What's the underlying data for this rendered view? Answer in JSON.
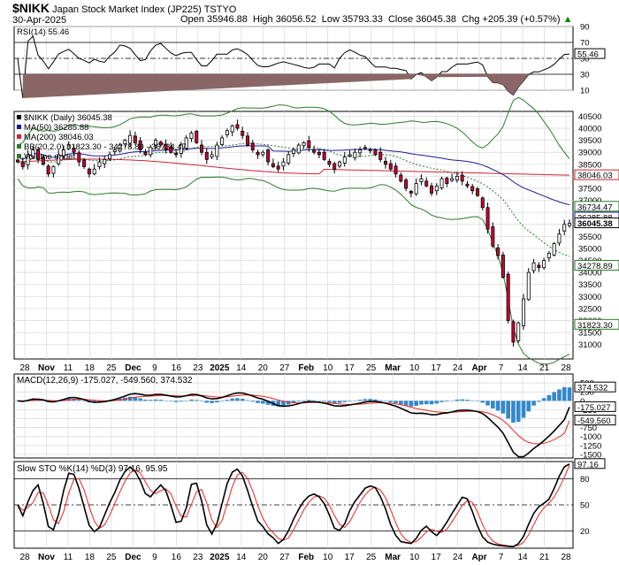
{
  "header": {
    "symbol": "$NIKK",
    "name": "Japan Stock Market Index (JP225)",
    "exchange": "TSTYO",
    "date": "30-Apr-2025",
    "open_label": "Open",
    "open": "35946.88",
    "high_label": "High",
    "high": "36056.52",
    "low_label": "Low",
    "low": "35793.33",
    "close_label": "Close",
    "close": "36045.38",
    "chg_label": "Chg",
    "chg": "+205.39 (+0.57%)",
    "chg_arrow": "▲"
  },
  "colors": {
    "up_candle": "#ffffff",
    "down_candle": "#cc0033",
    "ma50": "#1a1a99",
    "ma200": "#cc2233",
    "bollinger": "#2a7a2a",
    "bb_mid": "#2a7a2a",
    "macd_hist": "#3388cc",
    "signal_red": "#ee2222",
    "rsi_fill": "#8a6666",
    "grid": "#d8d8d8"
  },
  "chart_data": [
    {
      "type": "line",
      "panel": "rsi",
      "title": "RSI(14) 55.46",
      "ylim": [
        10,
        90
      ],
      "ticks": [
        90,
        70,
        50,
        30,
        10
      ],
      "reference_lines": [
        70,
        30
      ],
      "last_value_tag": "55.46"
    },
    {
      "type": "candlestick",
      "panel": "price",
      "legend": [
        {
          "label": "$NIKK (Daily) 36045.38",
          "color": "#000000"
        },
        {
          "label": "MA(50) 36285.88",
          "color": "#1a1a99"
        },
        {
          "label": "MA(200) 38046.03",
          "color": "#cc2233"
        },
        {
          "label": "BB(20,2.0) 31823.30 - 34278.89 - 36734.47",
          "color": "#2a7a2a"
        },
        {
          "label": "Volume undef",
          "color": "#2a7a2a"
        }
      ],
      "ylim": [
        30400,
        40700
      ],
      "ticks": [
        40500,
        40000,
        39500,
        39000,
        38500,
        38000,
        37500,
        37000,
        36500,
        36000,
        35500,
        35000,
        34500,
        34000,
        33500,
        33000,
        32500,
        32000,
        31500,
        31000
      ],
      "tags": [
        {
          "label": "38046.03",
          "value": 38046.03
        },
        {
          "label": "36734.47",
          "value": 36734.47
        },
        {
          "label": "36285.88",
          "value": 36285.88
        },
        {
          "label": "36045.38",
          "value": 36045.38,
          "bold": true
        },
        {
          "label": "34278.89",
          "value": 34278.89
        },
        {
          "label": "31823.30",
          "value": 31823.3
        }
      ],
      "x_labels": [
        "28",
        "Nov",
        "11",
        "18",
        "25",
        "Dec",
        "9",
        "16",
        "23",
        "2025",
        "14",
        "20",
        "27",
        "Feb",
        "10",
        "17",
        "25",
        "Mar",
        "10",
        "17",
        "24",
        "Apr",
        "7",
        "14",
        "21",
        "28"
      ],
      "bold_x_labels": [
        "Nov",
        "Dec",
        "2025",
        "Feb",
        "Mar",
        "Apr"
      ],
      "closes": [
        38600,
        38400,
        38900,
        39100,
        38700,
        38500,
        38100,
        38400,
        38900,
        39100,
        39300,
        39000,
        38600,
        38400,
        38100,
        38300,
        38600,
        38700,
        38900,
        39100,
        39300,
        39500,
        39700,
        39400,
        39100,
        38900,
        39200,
        39500,
        39300,
        39100,
        39000,
        38900,
        39300,
        39600,
        39800,
        39400,
        39000,
        38700,
        38900,
        39300,
        39600,
        39900,
        40100,
        40000,
        39700,
        39300,
        39100,
        38900,
        39000,
        38600,
        38400,
        38300,
        38600,
        38900,
        39100,
        39300,
        39400,
        39200,
        39000,
        38900,
        38700,
        38500,
        38300,
        38600,
        38800,
        38900,
        39000,
        39100,
        39200,
        39100,
        38900,
        38700,
        38500,
        38300,
        38100,
        37800,
        37500,
        37300,
        37700,
        37900,
        37600,
        37300,
        37600,
        37900,
        37700,
        37900,
        38000,
        37800,
        37600,
        37400,
        37200,
        36700,
        35800,
        35100,
        34700,
        33800,
        32000,
        31100,
        31900,
        32900,
        34000,
        34400,
        34200,
        34500,
        34800,
        35200,
        35600,
        36000,
        36045
      ]
    },
    {
      "type": "bar",
      "panel": "macd",
      "title": "MACD(12,26,9) -175.027, -549.560, 374.532",
      "series": [
        {
          "name": "MACD(12,26,9)",
          "last": -175.027
        },
        {
          "name": "signal",
          "last": -549.56
        },
        {
          "name": "histogram",
          "last": 374.532
        }
      ],
      "ylim": [
        -1600,
        750
      ],
      "ticks": [
        500,
        250,
        0,
        -250,
        -500,
        -750,
        -1000,
        -1250,
        -1500
      ],
      "tags": [
        {
          "label": "374.532",
          "value": 374.532
        },
        {
          "label": "-175.027",
          "value": -175.027
        },
        {
          "label": "-549.560",
          "value": -549.56
        }
      ]
    },
    {
      "type": "line",
      "panel": "stochastic",
      "title": "Slow STO %K(14) %D(3) 97.16, 95.95",
      "series": [
        {
          "name": "%K(14)",
          "last": 97.16
        },
        {
          "name": "%D(3)",
          "last": 95.95
        }
      ],
      "ylim": [
        0,
        100
      ],
      "ticks": [
        80,
        50,
        20
      ],
      "reference_lines": [
        80,
        50,
        20
      ],
      "last_value_tag": "97.16"
    }
  ]
}
